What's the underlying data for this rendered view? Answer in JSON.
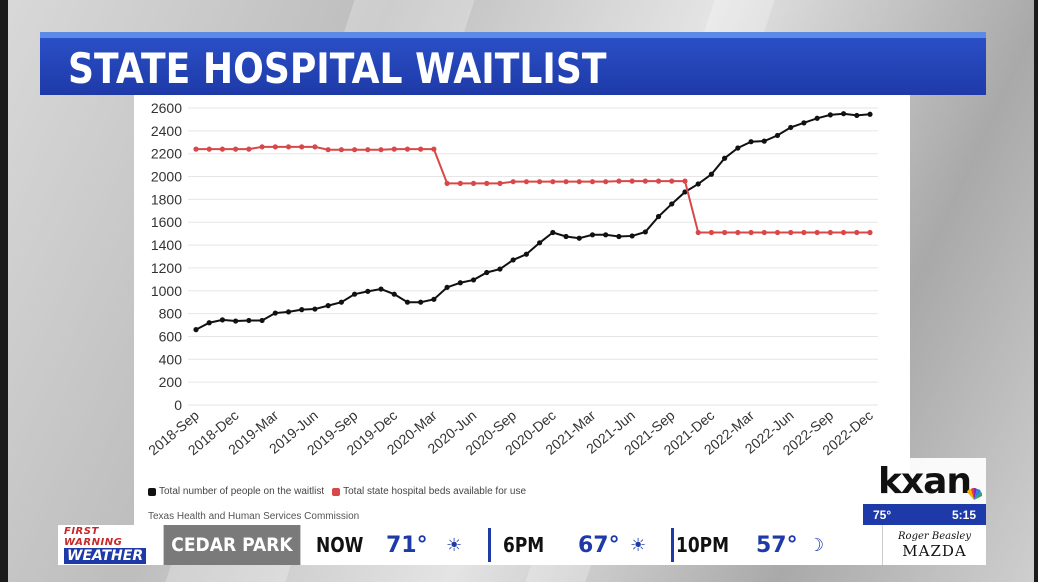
{
  "title": "STATE HOSPITAL WAITLIST",
  "chart_data": {
    "type": "line",
    "title": "",
    "xlabel": "",
    "ylabel": "",
    "ylim": [
      0,
      2600
    ],
    "yticks": [
      0,
      200,
      400,
      600,
      800,
      1000,
      1200,
      1400,
      1600,
      1800,
      2000,
      2200,
      2400,
      2600
    ],
    "x_tick_labels": [
      "2018-Sep",
      "2018-Dec",
      "2019-Mar",
      "2019-Jun",
      "2019-Sep",
      "2019-Dec",
      "2020-Mar",
      "2020-Jun",
      "2020-Sep",
      "2020-Dec",
      "2021-Mar",
      "2021-Jun",
      "2021-Sep",
      "2021-Dec",
      "2022-Mar",
      "2022-Jun",
      "2022-Sep",
      "2022-Dec"
    ],
    "grid": true,
    "legend_position": "bottom-left",
    "series": [
      {
        "name": "Total number of people on the waitlist",
        "color": "#111111",
        "values": [
          660,
          720,
          745,
          735,
          740,
          740,
          805,
          815,
          835,
          840,
          870,
          900,
          970,
          995,
          1015,
          970,
          900,
          900,
          925,
          1030,
          1070,
          1095,
          1160,
          1190,
          1270,
          1320,
          1420,
          1510,
          1475,
          1460,
          1490,
          1490,
          1475,
          1480,
          1515,
          1650,
          1760,
          1865,
          1935,
          2020,
          2160,
          2250,
          2305,
          2310,
          2360,
          2430,
          2470,
          2510,
          2540,
          2550,
          2535,
          2545
        ]
      },
      {
        "name": "Total state hospital beds available for use",
        "color": "#d94848",
        "values": [
          2240,
          2240,
          2240,
          2240,
          2240,
          2260,
          2260,
          2260,
          2260,
          2260,
          2235,
          2235,
          2235,
          2235,
          2235,
          2240,
          2240,
          2240,
          2240,
          1940,
          1940,
          1940,
          1940,
          1940,
          1955,
          1955,
          1955,
          1955,
          1955,
          1955,
          1955,
          1955,
          1960,
          1960,
          1960,
          1960,
          1960,
          1960,
          1510,
          1510,
          1510,
          1510,
          1510,
          1510,
          1510,
          1510,
          1510,
          1510,
          1510,
          1510,
          1510,
          1510
        ]
      }
    ],
    "source": "Texas Health and Human Services Commission"
  },
  "ticker": {
    "brand_line1": "FIRST WARNING",
    "brand_line2": "WEATHER",
    "city": "CEDAR PARK",
    "now_label": "NOW",
    "now_temp": "71°",
    "six_label": "6PM",
    "six_temp": "67°",
    "ten_label": "10PM",
    "ten_temp": "57°",
    "sponsor_line1": "Roger Beasley",
    "sponsor_line2": "MAZDA"
  },
  "station": {
    "logo": "kxan",
    "temp": "75°",
    "time": "5:15"
  },
  "colors": {
    "title_bar": "#1e3aa8",
    "waitlist_line": "#111111",
    "beds_line": "#d94848"
  }
}
